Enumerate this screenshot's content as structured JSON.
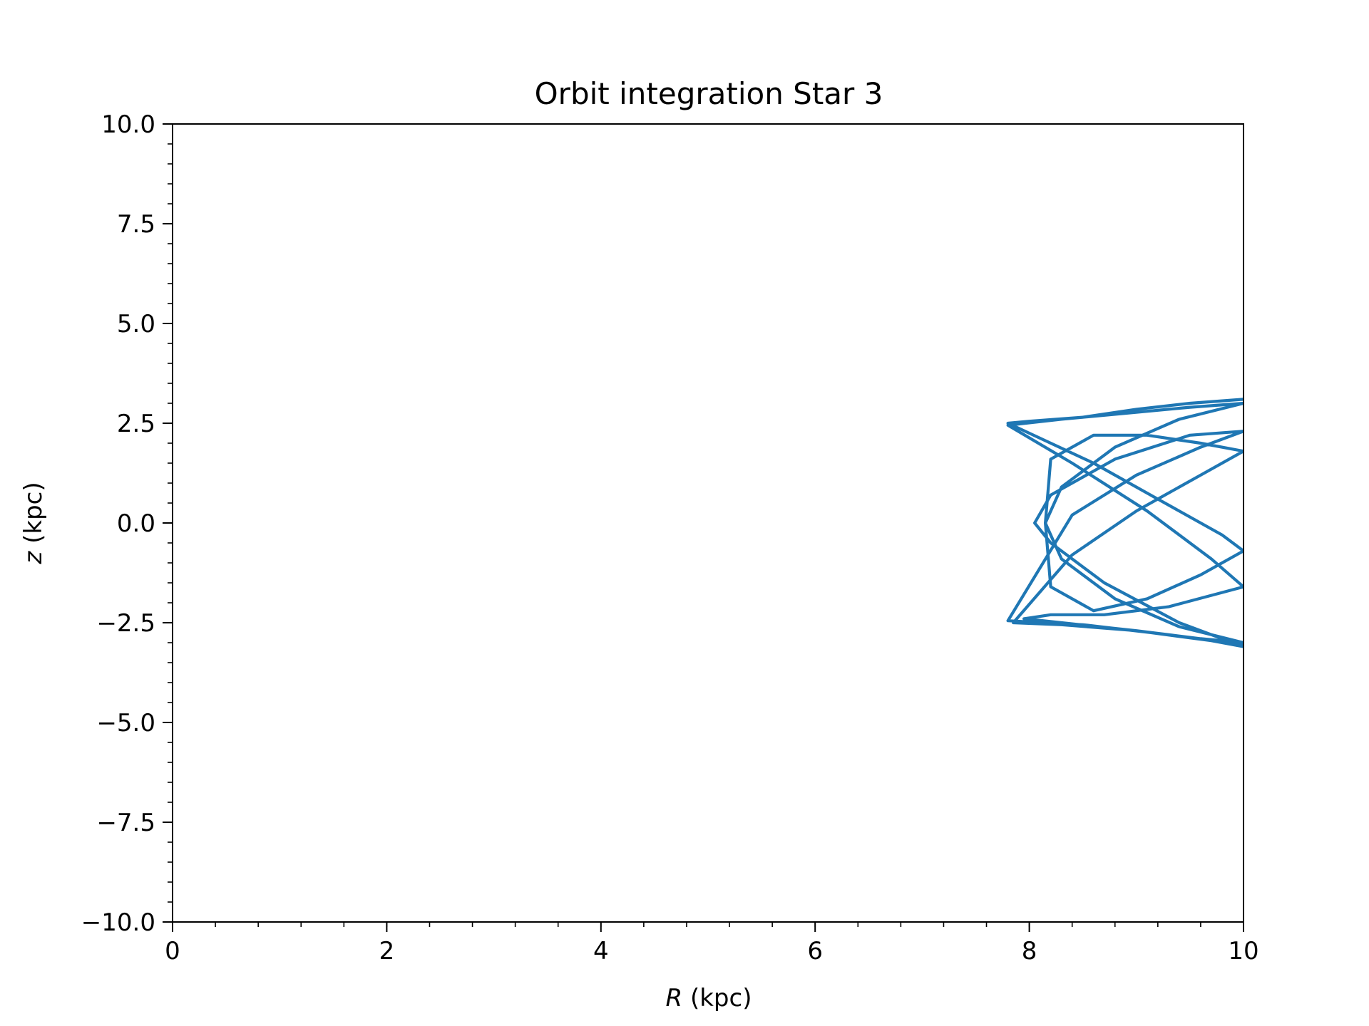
{
  "chart_data": {
    "type": "line",
    "title": "Orbit integration Star 3",
    "xlabel": {
      "var": "R",
      "unit": " (kpc)"
    },
    "ylabel": {
      "var": "z",
      "unit": " (kpc)"
    },
    "xlim": [
      0,
      10
    ],
    "ylim": [
      -10,
      10
    ],
    "x_ticks": [
      0,
      2,
      4,
      6,
      8,
      10
    ],
    "x_tick_labels": [
      "0",
      "2",
      "4",
      "6",
      "8",
      "10"
    ],
    "y_ticks": [
      10,
      7.5,
      5,
      2.5,
      0,
      -2.5,
      -5,
      -7.5,
      -10
    ],
    "y_tick_labels": [
      "10.0",
      "7.5",
      "5.0",
      "2.5",
      "0.0",
      "−2.5",
      "−5.0",
      "−7.5",
      "−10.0"
    ],
    "x_minor_step": 0.4,
    "y_minor_step": 0.5,
    "grid": false,
    "legend": "none",
    "series": [
      {
        "color": "#1f77b4",
        "x": [
          10.0,
          9.5,
          9.0,
          8.5,
          8.0,
          7.8,
          8.0,
          8.6,
          9.2,
          9.8,
          10.0,
          9.6,
          9.1,
          8.6,
          8.2,
          8.15,
          8.2,
          8.6,
          9.1,
          9.6,
          10.0,
          9.6,
          9.0,
          8.4,
          7.85,
          8.3,
          9.0,
          9.6,
          10.0,
          9.4,
          8.8,
          8.3,
          8.15,
          8.3,
          8.8,
          9.4,
          10.0,
          9.5,
          8.9,
          8.3,
          7.8,
          8.4,
          9.1,
          9.7,
          10.0,
          9.3,
          8.7,
          8.2,
          7.95,
          8.3,
          9.0,
          9.7,
          10.0,
          9.4,
          8.7,
          8.2,
          8.05,
          8.2,
          8.8,
          9.5,
          10.0,
          9.6,
          9.0,
          8.4,
          7.8,
          8.5,
          9.3,
          10.0
        ],
        "y": [
          3.1,
          3.0,
          2.85,
          2.65,
          2.55,
          2.5,
          2.25,
          1.5,
          0.6,
          -0.3,
          -0.7,
          -1.3,
          -1.9,
          -2.2,
          -1.6,
          0.0,
          1.6,
          2.2,
          2.2,
          2.0,
          1.8,
          1.2,
          0.3,
          -0.8,
          -2.5,
          -2.55,
          -2.7,
          -2.9,
          -3.0,
          -2.6,
          -1.9,
          -0.9,
          0.0,
          0.9,
          1.9,
          2.6,
          3.0,
          2.9,
          2.75,
          2.6,
          2.45,
          1.5,
          0.3,
          -0.9,
          -1.6,
          -2.1,
          -2.3,
          -2.3,
          -2.4,
          -2.5,
          -2.7,
          -2.95,
          -3.1,
          -2.5,
          -1.5,
          -0.5,
          0.0,
          0.7,
          1.6,
          2.2,
          2.3,
          1.9,
          1.2,
          0.2,
          -2.45,
          -2.55,
          -2.8,
          -3.05
        ]
      }
    ]
  }
}
